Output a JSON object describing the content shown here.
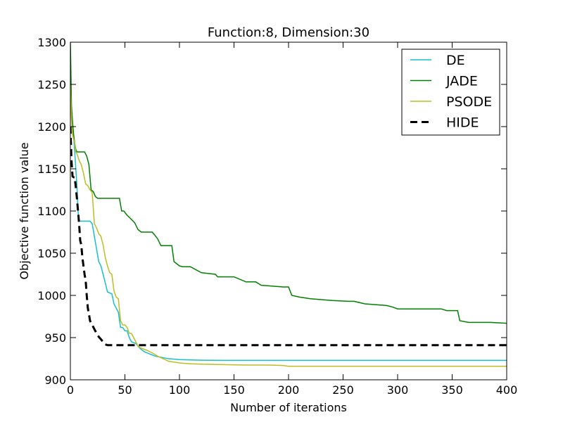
{
  "chart_data": {
    "type": "line",
    "title": "Function:8, Dimension:30",
    "xlabel": "Number of iterations",
    "ylabel": "Objective function value",
    "xlim": [
      0,
      400
    ],
    "ylim": [
      900,
      1300
    ],
    "xticks": [
      0,
      50,
      100,
      150,
      200,
      250,
      300,
      350,
      400
    ],
    "yticks": [
      900,
      950,
      1000,
      1050,
      1100,
      1150,
      1200,
      1250,
      1300
    ],
    "grid": false,
    "legend_position": "top-right",
    "series": [
      {
        "name": "DE",
        "color": "#17becf",
        "dash": "solid",
        "x": [
          0,
          1,
          2,
          3,
          4,
          5,
          6,
          7,
          8,
          9,
          10,
          12,
          14,
          16,
          18,
          20,
          22,
          24,
          26,
          28,
          30,
          32,
          34,
          36,
          38,
          40,
          42,
          44,
          46,
          48,
          50,
          52,
          54,
          56,
          58,
          60,
          62,
          64,
          66,
          68,
          70,
          74,
          78,
          82,
          86,
          90,
          95,
          100,
          110,
          120,
          140,
          160,
          200,
          250,
          300,
          350,
          400
        ],
        "y": [
          1250,
          1218,
          1205,
          1188,
          1170,
          1150,
          1130,
          1100,
          1088,
          1088,
          1088,
          1088,
          1088,
          1088,
          1088,
          1085,
          1070,
          1055,
          1040,
          1035,
          1025,
          1015,
          1004,
          1003,
          1002,
          990,
          985,
          980,
          962,
          962,
          958,
          958,
          950,
          945,
          944,
          943,
          940,
          937,
          935,
          933,
          932,
          930,
          928,
          927,
          926,
          925,
          924.5,
          924,
          923.5,
          923.2,
          923,
          923,
          923,
          923,
          923,
          923,
          923
        ]
      },
      {
        "name": "JADE",
        "color": "#008000",
        "dash": "solid",
        "x": [
          0,
          1,
          2,
          3,
          4,
          5,
          6,
          10,
          13,
          15,
          17,
          19,
          21,
          23,
          25,
          30,
          36,
          40,
          45,
          47,
          49,
          52,
          56,
          59,
          62,
          65,
          75,
          77,
          80,
          83,
          88,
          93,
          95,
          98,
          100,
          103,
          110,
          120,
          126,
          133,
          135,
          150,
          161,
          170,
          175,
          185,
          195,
          200,
          203,
          210,
          220,
          240,
          255,
          260,
          270,
          290,
          296,
          300,
          305,
          320,
          340,
          345,
          355,
          357,
          365,
          385,
          400
        ],
        "y": [
          1300,
          1225,
          1205,
          1190,
          1180,
          1173,
          1170,
          1170,
          1170,
          1165,
          1155,
          1125,
          1123,
          1117,
          1115,
          1115,
          1115,
          1115,
          1115,
          1100,
          1100,
          1095,
          1090,
          1086,
          1078,
          1075,
          1075,
          1072,
          1067,
          1059,
          1059,
          1059,
          1040,
          1037,
          1035,
          1034,
          1034,
          1027,
          1026,
          1025,
          1022,
          1022,
          1016,
          1016,
          1012,
          1011,
          1010,
          1010,
          1000,
          998,
          996,
          994,
          993,
          993,
          990,
          988,
          986,
          984,
          984,
          984,
          984,
          982,
          982,
          970,
          968,
          968,
          967
        ]
      },
      {
        "name": "PSODE",
        "color": "#bcbd22",
        "dash": "solid",
        "x": [
          0,
          1,
          2,
          3,
          4,
          5,
          6,
          8,
          10,
          12,
          14,
          16,
          18,
          20,
          22,
          24,
          26,
          28,
          30,
          32,
          34,
          36,
          38,
          40,
          42,
          44,
          46,
          48,
          50,
          52,
          54,
          56,
          58,
          60,
          62,
          64,
          66,
          70,
          75,
          80,
          85,
          90,
          95,
          100,
          110,
          120,
          140,
          160,
          180,
          195,
          200,
          250,
          300,
          350,
          400
        ],
        "y": [
          1250,
          1210,
          1190,
          1185,
          1180,
          1170,
          1168,
          1160,
          1155,
          1145,
          1132,
          1130,
          1125,
          1122,
          1085,
          1080,
          1073,
          1070,
          1060,
          1045,
          1035,
          1027,
          1025,
          1005,
          998,
          996,
          970,
          965,
          965,
          962,
          955,
          955,
          950,
          945,
          940,
          938,
          937,
          935,
          932,
          928,
          925,
          922,
          921,
          920,
          919,
          918.5,
          918,
          917.5,
          917.5,
          917,
          916,
          916,
          916,
          916,
          916
        ]
      },
      {
        "name": "HIDE",
        "color": "#000000",
        "dash": "dashed",
        "x": [
          0,
          1,
          2,
          3,
          4,
          5,
          6,
          7,
          8,
          9,
          10,
          11,
          12,
          13,
          14,
          15,
          16,
          17,
          18,
          20,
          22,
          24,
          26,
          28,
          30,
          32,
          34,
          36,
          40,
          50,
          100,
          200,
          300,
          400
        ],
        "y": [
          1200,
          1160,
          1141,
          1140,
          1140,
          1128,
          1115,
          1100,
          1085,
          1065,
          1060,
          1045,
          1035,
          1025,
          1018,
          1000,
          985,
          978,
          970,
          965,
          960,
          955,
          951,
          948,
          945,
          942,
          941,
          941,
          941,
          941,
          941,
          941,
          941,
          941
        ]
      }
    ]
  }
}
